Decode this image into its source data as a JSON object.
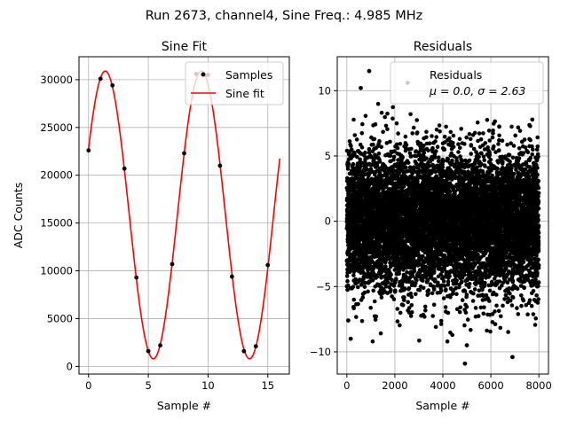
{
  "figure": {
    "suptitle": "Run 2673, channel4, Sine Freq.: 4.985 MHz"
  },
  "chart_data": [
    {
      "type": "scatter+line",
      "title": "Sine Fit",
      "xlabel": "Sample #",
      "ylabel": "ADC Counts",
      "xlim": [
        -0.8,
        16.8
      ],
      "ylim": [
        -800,
        32400
      ],
      "xticks": [
        0,
        5,
        10,
        15
      ],
      "xtick_labels": [
        "0",
        "5",
        "10",
        "15"
      ],
      "yticks": [
        0,
        5000,
        10000,
        15000,
        20000,
        25000,
        30000
      ],
      "ytick_labels": [
        "0",
        "5000",
        "10000",
        "15000",
        "20000",
        "25000",
        "30000"
      ],
      "grid": true,
      "legend": {
        "position": "top-right",
        "entries": [
          "Samples",
          "Sine fit"
        ]
      },
      "samples": {
        "name": "Samples",
        "x": [
          0,
          1,
          2,
          3,
          4,
          5,
          6,
          7,
          8,
          9,
          10,
          11,
          12,
          13,
          14,
          15
        ],
        "y": [
          22600,
          30100,
          29400,
          20700,
          9300,
          1600,
          2200,
          10700,
          22300,
          30600,
          30500,
          21000,
          9400,
          1600,
          2100,
          10600
        ]
      },
      "fit": {
        "name": "Sine fit",
        "color": "#ff0000",
        "amplitude": 15050,
        "offset": 15850,
        "samples_per_cycle": 8.05,
        "phase_rad": 0.48,
        "x_range": [
          0,
          16
        ]
      }
    },
    {
      "type": "scatter",
      "title": "Residuals",
      "xlabel": "Sample #",
      "ylabel": "",
      "xlim": [
        -400,
        8400
      ],
      "ylim": [
        -11.7,
        12.6
      ],
      "xticks": [
        0,
        2000,
        4000,
        6000,
        8000
      ],
      "xtick_labels": [
        "0",
        "2000",
        "4000",
        "6000",
        "8000"
      ],
      "yticks": [
        -10,
        -5,
        0,
        5,
        10
      ],
      "ytick_labels": [
        "−10",
        "−5",
        "0",
        "5",
        "10"
      ],
      "grid": true,
      "legend": {
        "position": "top-right",
        "entries": [
          "Residuals",
          "μ = 0.0, σ = 2.63"
        ]
      },
      "series": {
        "name": "Residuals",
        "n_points": 8000,
        "mean": 0.0,
        "sigma": 2.63,
        "outliers": [
          {
            "x": 930,
            "y": 11.5
          },
          {
            "x": 2530,
            "y": 10.6
          },
          {
            "x": 4920,
            "y": -10.9
          },
          {
            "x": 6900,
            "y": -10.4
          },
          {
            "x": 160,
            "y": -9.0
          },
          {
            "x": 5000,
            "y": -9.5
          },
          {
            "x": 60,
            "y": -7.6
          },
          {
            "x": 580,
            "y": 10.2
          }
        ]
      }
    }
  ]
}
